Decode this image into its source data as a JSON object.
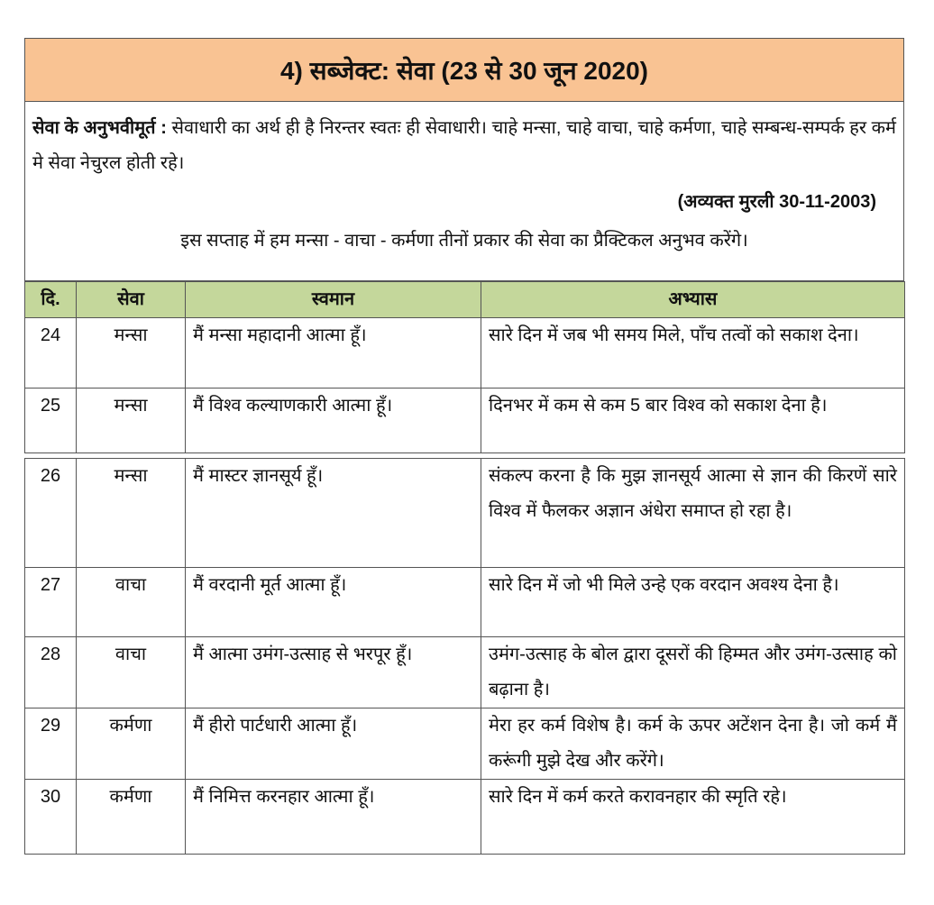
{
  "title": "4) सब्जेक्ट: सेवा (23 से 30 जून 2020)",
  "intro": {
    "label": "सेवा के अनुभवीमूर्त :",
    "text": " सेवाधारी का अर्थ ही है निरन्तर स्वतः ही सेवाधारी। चाहे मन्सा, चाहे वाचा, चाहे कर्मणा, चाहे सम्बन्ध-सम्पर्क हर कर्म मे सेवा नेचुरल होती रहे।",
    "reference": "(अव्यक्त मुरली 30-11-2003)",
    "week_note": "इस सप्ताह में हम मन्सा - वाचा - कर्मणा तीनों प्रकार की सेवा का प्रैक्टिकल अनुभव करेंगे।"
  },
  "table": {
    "headers": [
      "दि.",
      "सेवा",
      "स्वमान",
      "अभ्यास"
    ],
    "rows": [
      {
        "day": "24",
        "seva": "मन्सा",
        "swaman": "मैं मन्सा महादानी आत्मा हूँ।",
        "abhyas": "सारे दिन में जब भी समय मिले, पाँच तत्वों को सकाश देना।"
      },
      {
        "day": "25",
        "seva": "मन्सा",
        "swaman": "मैं विश्व कल्याणकारी आत्मा हूँ।",
        "abhyas": "दिनभर में कम से कम 5 बार विश्व को सकाश देना है।"
      },
      {
        "day": "26",
        "seva": "मन्सा",
        "swaman": "मैं मास्टर ज्ञानसूर्य हूँ।",
        "abhyas": "संकल्प करना है कि मुझ ज्ञानसूर्य आत्मा से ज्ञान की किरणें सारे विश्व में फैलकर अज्ञान अंधेरा समाप्त हो रहा है।"
      },
      {
        "day": "27",
        "seva": "वाचा",
        "swaman": "मैं वरदानी मूर्त आत्मा हूँ।",
        "abhyas": "सारे दिन में जो भी मिले उन्हे एक वरदान अवश्य देना है।"
      },
      {
        "day": "28",
        "seva": "वाचा",
        "swaman": "मैं आत्मा उमंग-उत्साह से भरपूर हूँ।",
        "abhyas": "उमंग-उत्साह के बोल द्वारा दूसरों की हिम्मत और उमंग-उत्साह को बढ़ाना है।"
      },
      {
        "day": "29",
        "seva": "कर्मणा",
        "swaman": "मैं हीरो पार्टधारी आत्मा हूँ।",
        "abhyas": "मेरा हर कर्म विशेष है।  कर्म के ऊपर अटेंशन देना है। जो कर्म मैं करूंगी मुझे देख और करेंगे।"
      },
      {
        "day": "30",
        "seva": "कर्मणा",
        "swaman": "मैं निमित्त करनहार आत्मा हूँ।",
        "abhyas": "सारे दिन में कर्म करते करावनहार की स्मृति रहे।"
      }
    ]
  },
  "colors": {
    "header_bg": "#f9c393",
    "table_header_bg": "#c4d79b"
  }
}
